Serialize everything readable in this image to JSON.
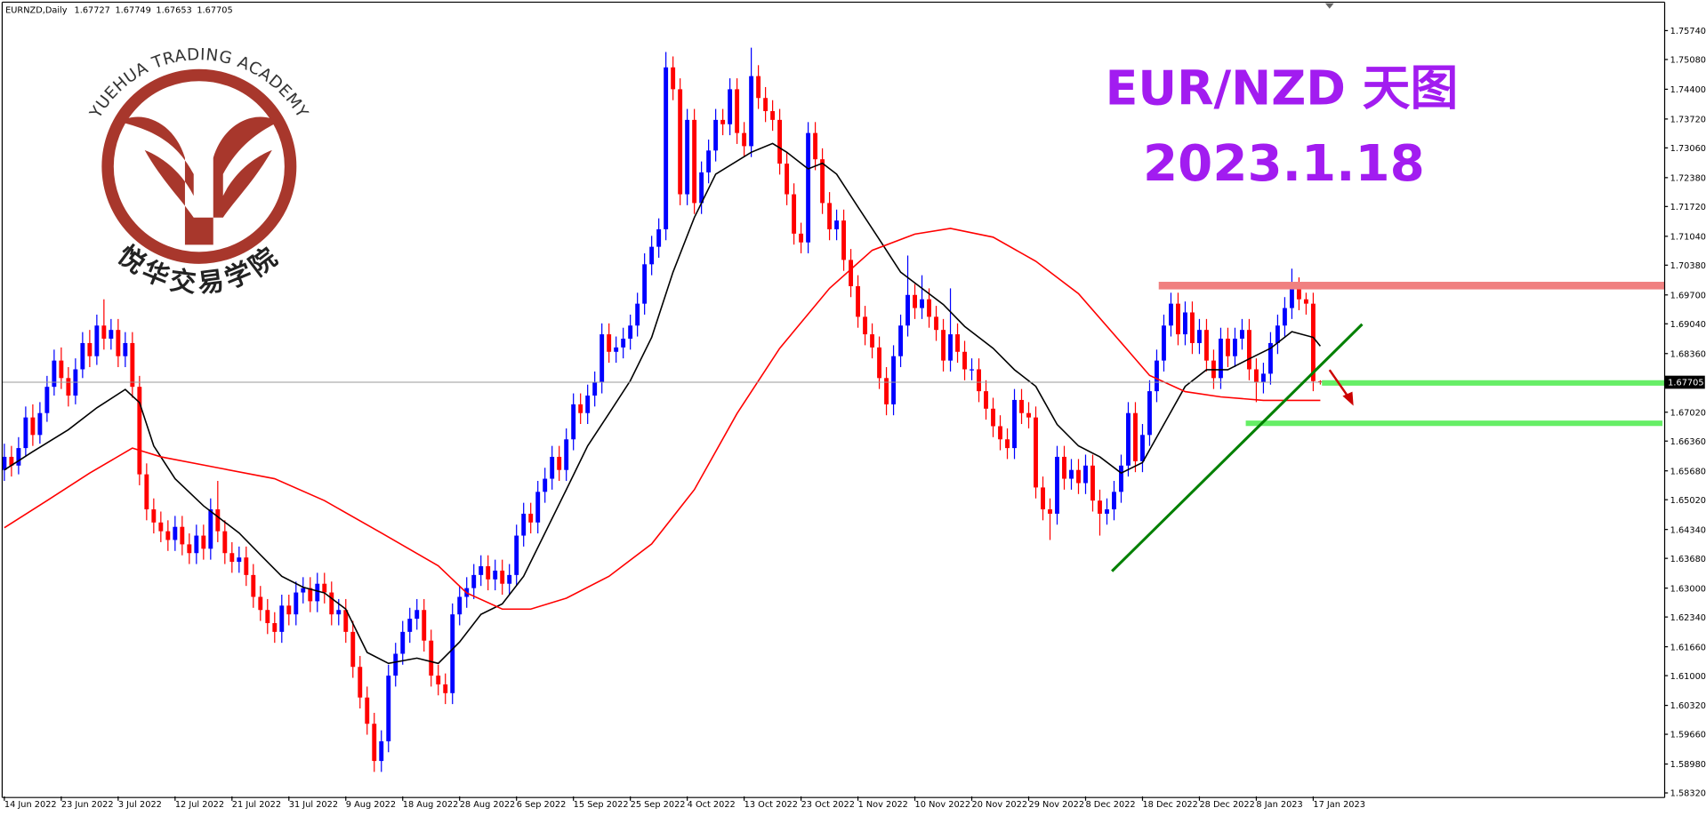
{
  "logo": {
    "text_en": "YUEHUA TRADING ACADEMY",
    "text_cn": "悦华交易学院"
  },
  "chart_data": {
    "type": "candlestick",
    "symbol": "EURNZD,Daily",
    "title": "EUR/NZD 天图",
    "subtitle": "2023.1.18",
    "up_color": "#0000ff",
    "down_color": "#ff0000",
    "ylim": [
      1.5824,
      1.7634
    ],
    "yticks": [
      {
        "value": 1.7574,
        "label": "1.75740"
      },
      {
        "value": 1.7508,
        "label": "1.75080"
      },
      {
        "value": 1.744,
        "label": "1.74400"
      },
      {
        "value": 1.7372,
        "label": "1.73720"
      },
      {
        "value": 1.7306,
        "label": "1.73060"
      },
      {
        "value": 1.7238,
        "label": "1.72380"
      },
      {
        "value": 1.7172,
        "label": "1.71720"
      },
      {
        "value": 1.7104,
        "label": "1.71040"
      },
      {
        "value": 1.7038,
        "label": "1.70380"
      },
      {
        "value": 1.697,
        "label": "1.69700"
      },
      {
        "value": 1.6904,
        "label": "1.69040"
      },
      {
        "value": 1.6836,
        "label": "1.68360"
      },
      {
        "value": 1.6702,
        "label": "1.67020"
      },
      {
        "value": 1.6636,
        "label": "1.66360"
      },
      {
        "value": 1.6568,
        "label": "1.65680"
      },
      {
        "value": 1.6502,
        "label": "1.65020"
      },
      {
        "value": 1.6434,
        "label": "1.64340"
      },
      {
        "value": 1.6368,
        "label": "1.63680"
      },
      {
        "value": 1.63,
        "label": "1.63000"
      },
      {
        "value": 1.6234,
        "label": "1.62340"
      },
      {
        "value": 1.6166,
        "label": "1.61660"
      },
      {
        "value": 1.61,
        "label": "1.61000"
      },
      {
        "value": 1.6032,
        "label": "1.60320"
      },
      {
        "value": 1.5966,
        "label": "1.59660"
      },
      {
        "value": 1.5898,
        "label": "1.58980"
      },
      {
        "value": 1.5832,
        "label": "1.58320"
      }
    ],
    "categories": [
      "14 Jun 2022",
      null,
      null,
      null,
      null,
      null,
      null,
      null,
      "23 Jun 2022",
      null,
      null,
      null,
      null,
      null,
      null,
      null,
      "3 Jul 2022",
      null,
      null,
      null,
      null,
      null,
      null,
      null,
      "12 Jul 2022",
      null,
      null,
      null,
      null,
      null,
      null,
      null,
      "21 Jul 2022",
      null,
      null,
      null,
      null,
      null,
      null,
      null,
      "31 Jul 2022",
      null,
      null,
      null,
      null,
      null,
      null,
      null,
      "9 Aug 2022",
      null,
      null,
      null,
      null,
      null,
      null,
      null,
      "18 Aug 2022",
      null,
      null,
      null,
      null,
      null,
      null,
      null,
      "28 Aug 2022",
      null,
      null,
      null,
      null,
      null,
      null,
      null,
      "6 Sep 2022",
      null,
      null,
      null,
      null,
      null,
      null,
      null,
      "15 Sep 2022",
      null,
      null,
      null,
      null,
      null,
      null,
      null,
      "25 Sep 2022",
      null,
      null,
      null,
      null,
      null,
      null,
      null,
      "4 Oct 2022",
      null,
      null,
      null,
      null,
      null,
      null,
      null,
      "13 Oct 2022",
      null,
      null,
      null,
      null,
      null,
      null,
      null,
      "23 Oct 2022",
      null,
      null,
      null,
      null,
      null,
      null,
      null,
      "1 Nov 2022",
      null,
      null,
      null,
      null,
      null,
      null,
      null,
      "10 Nov 2022",
      null,
      null,
      null,
      null,
      null,
      null,
      null,
      "20 Nov 2022",
      null,
      null,
      null,
      null,
      null,
      null,
      null,
      "29 Nov 2022",
      null,
      null,
      null,
      null,
      null,
      null,
      null,
      "8 Dec 2022",
      null,
      null,
      null,
      null,
      null,
      null,
      null,
      "18 Dec 2022",
      null,
      null,
      null,
      null,
      null,
      null,
      null,
      "28 Dec 2022",
      null,
      null,
      null,
      null,
      null,
      null,
      null,
      "8 Jan 2023",
      null,
      null,
      null,
      null,
      null,
      null,
      null,
      "17 Jan 2023",
      null
    ],
    "open": [
      1.657,
      1.66,
      1.658,
      1.662,
      1.669,
      1.665,
      1.67,
      1.676,
      1.682,
      1.678,
      1.674,
      1.68,
      1.686,
      1.683,
      1.69,
      1.687,
      1.689,
      1.683,
      1.686,
      1.676,
      1.656,
      1.648,
      1.645,
      1.643,
      1.641,
      1.644,
      1.64,
      1.638,
      1.642,
      1.639,
      1.648,
      1.643,
      1.638,
      1.636,
      1.637,
      1.633,
      1.628,
      1.625,
      1.622,
      1.62,
      1.626,
      1.624,
      1.629,
      1.63,
      1.627,
      1.631,
      1.629,
      1.624,
      1.625,
      1.62,
      1.612,
      1.605,
      1.599,
      1.5905,
      1.595,
      1.61,
      1.615,
      1.62,
      1.623,
      1.625,
      1.618,
      1.61,
      1.608,
      1.606,
      1.624,
      1.628,
      1.63,
      1.633,
      1.635,
      1.632,
      1.634,
      1.631,
      1.633,
      1.642,
      1.647,
      1.645,
      1.652,
      1.655,
      1.66,
      1.657,
      1.664,
      1.672,
      1.67,
      1.674,
      1.677,
      1.688,
      1.684,
      1.685,
      1.687,
      1.69,
      1.695,
      1.704,
      1.708,
      1.712,
      1.749,
      1.744,
      1.72,
      1.737,
      1.718,
      1.725,
      1.73,
      1.737,
      1.736,
      1.744,
      1.734,
      1.731,
      1.747,
      1.742,
      1.739,
      1.737,
      1.727,
      1.72,
      1.711,
      1.709,
      1.734,
      1.728,
      1.718,
      1.712,
      1.714,
      1.705,
      1.699,
      1.692,
      1.688,
      1.685,
      1.678,
      1.672,
      1.683,
      1.69,
      1.697,
      1.694,
      1.696,
      1.692,
      1.689,
      1.682,
      1.688,
      1.684,
      1.68,
      1.68,
      1.675,
      1.671,
      1.667,
      1.664,
      1.662,
      1.673,
      1.67,
      1.669,
      1.653,
      1.648,
      1.647,
      1.66,
      1.655,
      1.657,
      1.654,
      1.658,
      1.65,
      1.647,
      1.648,
      1.652,
      1.658,
      1.67,
      1.659,
      1.665,
      1.675,
      1.682,
      1.69,
      1.695,
      1.688,
      1.693,
      1.686,
      1.689,
      1.682,
      1.678,
      1.687,
      1.683,
      1.687,
      1.689,
      1.68,
      1.677,
      1.679,
      1.686,
      1.69,
      1.694,
      1.6985,
      1.696,
      1.695,
      1.67727
    ],
    "high": [
      1.663,
      1.6625,
      1.6645,
      1.6715,
      1.672,
      1.6725,
      1.6785,
      1.6845,
      1.685,
      1.6805,
      1.6825,
      1.6885,
      1.689,
      1.6925,
      1.696,
      1.6915,
      1.6915,
      1.6885,
      1.6885,
      1.6785,
      1.6585,
      1.6505,
      1.6475,
      1.6455,
      1.6465,
      1.6465,
      1.6425,
      1.6445,
      1.6445,
      1.6505,
      1.6545,
      1.6455,
      1.6405,
      1.6395,
      1.6395,
      1.6355,
      1.6305,
      1.6275,
      1.6245,
      1.6285,
      1.6285,
      1.6315,
      1.6325,
      1.6325,
      1.6335,
      1.6335,
      1.6315,
      1.6275,
      1.6275,
      1.6225,
      1.6145,
      1.6075,
      1.6015,
      1.5975,
      1.6125,
      1.6175,
      1.6225,
      1.6255,
      1.6275,
      1.6275,
      1.6205,
      1.6125,
      1.6105,
      1.6265,
      1.6305,
      1.6325,
      1.6355,
      1.6375,
      1.6375,
      1.6365,
      1.6365,
      1.6355,
      1.6445,
      1.6495,
      1.6495,
      1.6545,
      1.6575,
      1.6625,
      1.6625,
      1.6665,
      1.6745,
      1.6745,
      1.6765,
      1.6795,
      1.6905,
      1.6905,
      1.6875,
      1.6895,
      1.6925,
      1.6975,
      1.7065,
      1.7105,
      1.7145,
      1.7525,
      1.7515,
      1.7465,
      1.7395,
      1.7395,
      1.7275,
      1.7325,
      1.7395,
      1.7395,
      1.7465,
      1.7465,
      1.7365,
      1.7535,
      1.7495,
      1.7445,
      1.7415,
      1.7395,
      1.7295,
      1.7225,
      1.7135,
      1.7365,
      1.7365,
      1.7305,
      1.7205,
      1.7165,
      1.7165,
      1.7075,
      1.7015,
      1.6945,
      1.6905,
      1.6875,
      1.6805,
      1.6855,
      1.6925,
      1.706,
      1.6995,
      1.7015,
      1.6985,
      1.6945,
      1.6915,
      1.6985,
      1.6905,
      1.6865,
      1.6825,
      1.6825,
      1.6775,
      1.6735,
      1.6695,
      1.6665,
      1.6755,
      1.6755,
      1.6725,
      1.6715,
      1.6555,
      1.6505,
      1.6625,
      1.6625,
      1.6595,
      1.6595,
      1.6605,
      1.6605,
      1.6525,
      1.6505,
      1.6545,
      1.6605,
      1.6725,
      1.6725,
      1.6675,
      1.6775,
      1.6845,
      1.6925,
      1.6975,
      1.6975,
      1.6955,
      1.6955,
      1.6915,
      1.6915,
      1.6845,
      1.6895,
      1.6895,
      1.6895,
      1.6915,
      1.6915,
      1.6825,
      1.6815,
      1.6885,
      1.6925,
      1.6965,
      1.703,
      1.701,
      1.6975,
      1.6975,
      1.67749
    ],
    "low": [
      1.6545,
      1.6555,
      1.656,
      1.66,
      1.6625,
      1.663,
      1.668,
      1.674,
      1.6755,
      1.6715,
      1.672,
      1.678,
      1.6805,
      1.681,
      1.6845,
      1.6845,
      1.6805,
      1.6805,
      1.6735,
      1.6535,
      1.6455,
      1.6425,
      1.6405,
      1.6385,
      1.6385,
      1.6375,
      1.6355,
      1.6355,
      1.6365,
      1.6365,
      1.6405,
      1.6355,
      1.6335,
      1.6335,
      1.6305,
      1.6255,
      1.6225,
      1.6195,
      1.6175,
      1.6175,
      1.6215,
      1.6215,
      1.6265,
      1.6245,
      1.6245,
      1.6265,
      1.6215,
      1.6215,
      1.6175,
      1.6095,
      1.6025,
      1.5965,
      1.588,
      1.588,
      1.5925,
      1.6075,
      1.6125,
      1.6175,
      1.6205,
      1.6155,
      1.6075,
      1.6055,
      1.6035,
      1.6035,
      1.6215,
      1.6255,
      1.6275,
      1.6305,
      1.6295,
      1.6295,
      1.6285,
      1.6285,
      1.6305,
      1.6395,
      1.6425,
      1.6425,
      1.6495,
      1.6525,
      1.6545,
      1.6545,
      1.6615,
      1.6675,
      1.6675,
      1.6715,
      1.6745,
      1.6815,
      1.6815,
      1.6825,
      1.6845,
      1.6875,
      1.6925,
      1.7015,
      1.7055,
      1.7095,
      1.7415,
      1.7175,
      1.7175,
      1.7155,
      1.7155,
      1.7225,
      1.7275,
      1.7335,
      1.7335,
      1.7315,
      1.7285,
      1.7285,
      1.7395,
      1.7365,
      1.7345,
      1.7245,
      1.7175,
      1.7085,
      1.7065,
      1.7065,
      1.7255,
      1.7155,
      1.7095,
      1.7095,
      1.7025,
      1.6965,
      1.6895,
      1.6855,
      1.6825,
      1.6755,
      1.6695,
      1.6695,
      1.6805,
      1.6875,
      1.6915,
      1.6915,
      1.6895,
      1.6865,
      1.6795,
      1.6795,
      1.6815,
      1.6775,
      1.6775,
      1.6725,
      1.6685,
      1.6645,
      1.6615,
      1.6595,
      1.6595,
      1.6675,
      1.6665,
      1.6505,
      1.6455,
      1.641,
      1.6445,
      1.6525,
      1.6525,
      1.6515,
      1.6515,
      1.6475,
      1.642,
      1.6445,
      1.6455,
      1.6495,
      1.6555,
      1.6565,
      1.6565,
      1.6625,
      1.6725,
      1.6795,
      1.6875,
      1.6855,
      1.6855,
      1.6835,
      1.6835,
      1.6795,
      1.6755,
      1.6755,
      1.6805,
      1.6805,
      1.6845,
      1.6775,
      1.6725,
      1.6745,
      1.6765,
      1.6835,
      1.6875,
      1.6915,
      1.6935,
      1.6925,
      1.675,
      1.67653
    ],
    "close": [
      1.66,
      1.658,
      1.662,
      1.669,
      1.665,
      1.67,
      1.676,
      1.682,
      1.678,
      1.674,
      1.68,
      1.686,
      1.683,
      1.69,
      1.687,
      1.689,
      1.683,
      1.686,
      1.676,
      1.656,
      1.648,
      1.645,
      1.643,
      1.641,
      1.644,
      1.64,
      1.638,
      1.642,
      1.639,
      1.648,
      1.643,
      1.638,
      1.636,
      1.637,
      1.633,
      1.628,
      1.625,
      1.622,
      1.62,
      1.626,
      1.624,
      1.629,
      1.63,
      1.627,
      1.631,
      1.629,
      1.624,
      1.625,
      1.62,
      1.612,
      1.605,
      1.599,
      1.5905,
      1.595,
      1.61,
      1.615,
      1.62,
      1.623,
      1.625,
      1.618,
      1.61,
      1.608,
      1.606,
      1.624,
      1.628,
      1.63,
      1.633,
      1.635,
      1.632,
      1.634,
      1.631,
      1.633,
      1.642,
      1.647,
      1.645,
      1.652,
      1.655,
      1.66,
      1.657,
      1.664,
      1.672,
      1.67,
      1.674,
      1.677,
      1.688,
      1.684,
      1.685,
      1.687,
      1.69,
      1.695,
      1.704,
      1.708,
      1.712,
      1.749,
      1.744,
      1.72,
      1.737,
      1.718,
      1.725,
      1.73,
      1.737,
      1.736,
      1.744,
      1.734,
      1.731,
      1.747,
      1.742,
      1.739,
      1.737,
      1.727,
      1.72,
      1.711,
      1.709,
      1.734,
      1.728,
      1.718,
      1.712,
      1.714,
      1.705,
      1.699,
      1.692,
      1.688,
      1.685,
      1.678,
      1.672,
      1.683,
      1.69,
      1.697,
      1.694,
      1.696,
      1.692,
      1.689,
      1.682,
      1.688,
      1.684,
      1.68,
      1.68,
      1.675,
      1.671,
      1.667,
      1.664,
      1.662,
      1.673,
      1.67,
      1.669,
      1.653,
      1.648,
      1.647,
      1.66,
      1.655,
      1.657,
      1.654,
      1.658,
      1.65,
      1.647,
      1.648,
      1.652,
      1.658,
      1.67,
      1.659,
      1.665,
      1.675,
      1.682,
      1.69,
      1.695,
      1.688,
      1.693,
      1.686,
      1.689,
      1.682,
      1.678,
      1.687,
      1.683,
      1.687,
      1.689,
      1.68,
      1.677,
      1.679,
      1.686,
      1.69,
      1.694,
      1.6985,
      1.696,
      1.695,
      1.6773,
      1.67705
    ],
    "overlays": [
      {
        "color": "#000000",
        "x": [
          0,
          4,
          9,
          13,
          17,
          19,
          21,
          24,
          28,
          33,
          36,
          39,
          42,
          45,
          48,
          51,
          54,
          58,
          61,
          64,
          67,
          70,
          73,
          76,
          79,
          82,
          85,
          88,
          91,
          94,
          97,
          100,
          105,
          108,
          110,
          113,
          115,
          117,
          120,
          123,
          126,
          129,
          132,
          135,
          139,
          142,
          145,
          148,
          151,
          154,
          157,
          160,
          163,
          166,
          169,
          172,
          175,
          178,
          181,
          184,
          185
        ],
        "values": [
          1.657,
          1.6612,
          1.6662,
          1.6712,
          1.6754,
          1.6724,
          1.6625,
          1.655,
          1.6488,
          1.6426,
          1.6376,
          1.6327,
          1.6302,
          1.6289,
          1.6252,
          1.6153,
          1.6128,
          1.614,
          1.6128,
          1.6177,
          1.624,
          1.6264,
          1.6327,
          1.6426,
          1.6525,
          1.6625,
          1.6699,
          1.6774,
          1.6873,
          1.7022,
          1.7147,
          1.7246,
          1.7296,
          1.7316,
          1.7296,
          1.7258,
          1.7271,
          1.7246,
          1.7171,
          1.7097,
          1.7022,
          1.6985,
          1.6948,
          1.6898,
          1.6848,
          1.6799,
          1.6761,
          1.6674,
          1.6625,
          1.66,
          1.6563,
          1.6587,
          1.6674,
          1.6761,
          1.6799,
          1.6799,
          1.6824,
          1.6848,
          1.6886,
          1.6873,
          1.6853
        ]
      },
      {
        "color": "#ff0000",
        "x": [
          0,
          6,
          12,
          18,
          22,
          30,
          38,
          45,
          53,
          61,
          65,
          70,
          74,
          79,
          85,
          91,
          97,
          103,
          109,
          116,
          122,
          128,
          133,
          139,
          145,
          151,
          157,
          161,
          166,
          171,
          177,
          181,
          185
        ],
        "values": [
          1.6438,
          1.65,
          1.6563,
          1.662,
          1.66,
          1.6575,
          1.655,
          1.65,
          1.6426,
          1.6351,
          1.6289,
          1.6252,
          1.6252,
          1.6277,
          1.6327,
          1.6401,
          1.6525,
          1.6699,
          1.6848,
          1.6985,
          1.7072,
          1.7109,
          1.7122,
          1.7102,
          1.7047,
          1.6973,
          1.6861,
          1.6786,
          1.6749,
          1.6737,
          1.6729,
          1.6729,
          1.6729
        ]
      }
    ]
  }
}
